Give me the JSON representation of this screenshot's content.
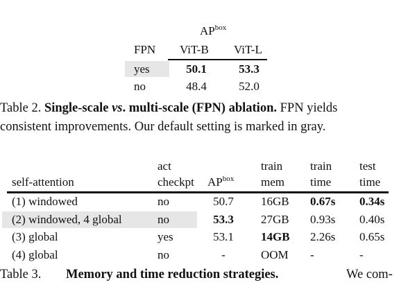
{
  "table2": {
    "header": {
      "ap_label": "AP",
      "ap_sup": "box",
      "col_fpn": "FPN",
      "col_vitb": "ViT-B",
      "col_vitl": "ViT-L"
    },
    "rows": [
      {
        "fpn": "yes",
        "vitb": "50.1",
        "vitl": "53.3",
        "default": true
      },
      {
        "fpn": "no",
        "vitb": "48.4",
        "vitl": "52.0",
        "default": false
      }
    ],
    "caption": {
      "label": "Table 2. ",
      "bold_a": "Single-scale ",
      "bold_vs": "vs",
      "bold_b": ". multi-scale (FPN) ablation.",
      "text_line1": " FPN yields",
      "text_line2": "consistent improvements. Our default setting is marked in gray."
    }
  },
  "table3": {
    "header": {
      "col1": "self-attention",
      "col2_line1": "act",
      "col2_line2": "checkpt",
      "col3_label": "AP",
      "col3_sup": "box",
      "col4_line1": "train",
      "col4_line2": "mem",
      "col5_line1": "train",
      "col5_line2": "time",
      "col6_line1": "test",
      "col6_line2": "time"
    },
    "rows": [
      {
        "attn": "(1) windowed",
        "act": "no",
        "ap": "50.7",
        "mem": "16GB",
        "train": "0.67s",
        "test": "0.34s",
        "default": false
      },
      {
        "attn": "(2) windowed, 4 global",
        "act": "no",
        "ap": "53.3",
        "mem": "27GB",
        "train": "0.93s",
        "test": "0.40s",
        "default": true
      },
      {
        "attn": "(3) global",
        "act": "yes",
        "ap": "53.1",
        "mem": "14GB",
        "train": "2.26s",
        "test": "0.65s",
        "default": false
      },
      {
        "attn": "(4) global",
        "act": "no",
        "ap": "-",
        "mem": "OOM",
        "train": "-",
        "test": "-",
        "default": false
      }
    ],
    "caption": {
      "label": "Table 3.",
      "bold": "Memory and time reduction strategies.",
      "text": "We com-"
    }
  }
}
